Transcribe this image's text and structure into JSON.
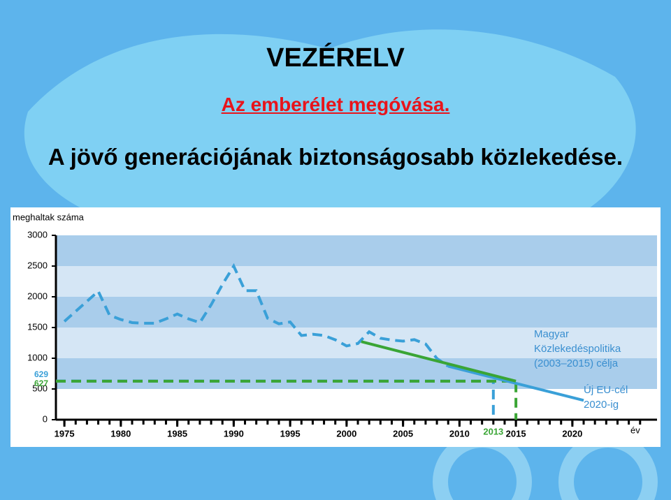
{
  "slide": {
    "title": "VEZÉRELV",
    "subtitle": "Az emberélet megóvása.",
    "heading": "A jövő generációjának biztonságosabb közlekedése."
  },
  "chart_data": {
    "type": "line",
    "y_label": "meghaltak száma",
    "x_label": "év",
    "xlim": [
      1974.25,
      2027.5
    ],
    "ylim": [
      0,
      3000
    ],
    "xticks": [
      1975,
      1980,
      1985,
      1990,
      1995,
      2000,
      2005,
      2010,
      2015,
      2020
    ],
    "xminorticks": [
      1975,
      1976,
      1977,
      1978,
      1979,
      1980,
      1981,
      1982,
      1983,
      1984,
      1985,
      1986,
      1987,
      1988,
      1989,
      1990,
      1991,
      1992,
      1993,
      1994,
      1995,
      1996,
      1997,
      1998,
      1999,
      2000,
      2001,
      2002,
      2003,
      2004,
      2005,
      2006,
      2007,
      2008,
      2009,
      2010,
      2011,
      2012,
      2013,
      2014,
      2015,
      2016,
      2017,
      2018,
      2019,
      2020,
      2021,
      2022,
      2023,
      2024,
      2025,
      2026
    ],
    "yticks": [
      0,
      500,
      1000,
      1500,
      2000,
      2500,
      3000
    ],
    "band_colors": [
      "#ffffff",
      "#a9cdeb",
      "#d5e6f5"
    ],
    "series": [
      {
        "color": "#3aa0d8",
        "dashed": true,
        "x": [
          1975,
          1978,
          1979,
          1980,
          1981,
          1982,
          1983,
          1984,
          1985,
          1986,
          1987,
          1988,
          1989,
          1990,
          1991,
          1992,
          1993,
          1994,
          1995,
          1996,
          1997,
          1998,
          1999,
          2000,
          2001,
          2002,
          2003,
          2004,
          2005,
          2006,
          2007,
          2008,
          2009
        ],
        "values": [
          1600,
          2090,
          1700,
          1630,
          1580,
          1570,
          1570,
          1640,
          1720,
          1640,
          1580,
          1870,
          2200,
          2500,
          2100,
          2100,
          1650,
          1560,
          1590,
          1370,
          1390,
          1370,
          1300,
          1200,
          1240,
          1430,
          1326,
          1296,
          1278,
          1303,
          1232,
          996,
          870
        ]
      },
      {
        "color": "#3aa0d8",
        "dashed": false,
        "x": [
          2009,
          2021
        ],
        "values": [
          870,
          315
        ]
      },
      {
        "color": "#3aa535",
        "dashed": false,
        "x": [
          2001.3,
          2015
        ],
        "values": [
          1270,
          627
        ]
      }
    ],
    "reference_lines": [
      {
        "value": 629,
        "until": 2013,
        "color": "#3aa0d8"
      },
      {
        "value": 627,
        "until": 2015,
        "color": "#3aa535"
      }
    ],
    "annotations": [
      {
        "lines": [
          "Magyar",
          "Közlekedéspolitika",
          "(2003–2015) célja"
        ],
        "color": "#3a8fd0"
      },
      {
        "lines": [
          "Új EU-cél",
          "2020-ig"
        ],
        "color": "#3a8fd0"
      }
    ]
  }
}
